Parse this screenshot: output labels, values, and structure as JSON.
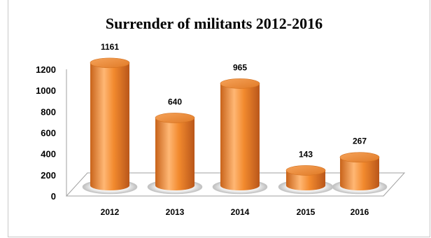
{
  "chart_data": {
    "type": "bar",
    "style": "3d-cylinder",
    "title": "Surrender of militants 2012-2016",
    "categories": [
      "2012",
      "2013",
      "2014",
      "2015",
      "2016"
    ],
    "values": [
      1161,
      640,
      965,
      143,
      267
    ],
    "yticks": [
      0,
      200,
      400,
      600,
      800,
      1000,
      1200
    ],
    "ylim": [
      0,
      1200
    ],
    "xlabel": "",
    "ylabel": "",
    "grid": false,
    "legend": "none",
    "colors": {
      "bar": "#f28a2e",
      "bar_dark": "#c8631a",
      "bar_light": "#ffc98f",
      "floor_line": "#a0a0a0"
    }
  }
}
